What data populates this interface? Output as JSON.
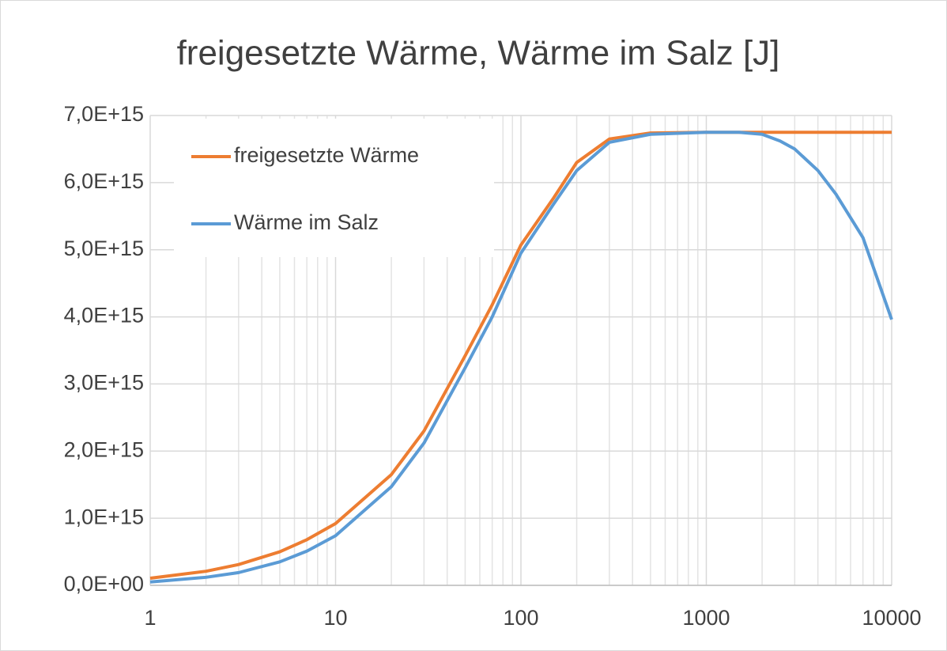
{
  "chart_data": {
    "type": "line",
    "title": "freigesetzte Wärme, Wärme im Salz [J]",
    "x": [
      1,
      2,
      3,
      5,
      7,
      10,
      20,
      30,
      50,
      70,
      100,
      150,
      200,
      300,
      500,
      1000,
      1500,
      2000,
      2500,
      3000,
      4000,
      5000,
      7000,
      10000
    ],
    "series": [
      {
        "name": "freigesetzte Wärme",
        "color": "#ed7d31",
        "values": [
          106000000000000.0,
          210000000000000.0,
          310000000000000.0,
          500000000000000.0,
          680000000000000.0,
          920000000000000.0,
          1650000000000000.0,
          2300000000000000.0,
          3420000000000000.0,
          4180000000000000.0,
          5070000000000000.0,
          5770000000000000.0,
          6300000000000000.0,
          6650000000000000.0,
          6740000000000000.0,
          6750000000000000.0,
          6750000000000000.0,
          6750000000000000.0,
          6750000000000000.0,
          6750000000000000.0,
          6750000000000000.0,
          6750000000000000.0,
          6750000000000000.0,
          6750000000000000.0
        ]
      },
      {
        "name": "Wärme im Salz",
        "color": "#5b9bd5",
        "values": [
          50000000000000.0,
          120000000000000.0,
          190000000000000.0,
          350000000000000.0,
          510000000000000.0,
          740000000000000.0,
          1470000000000000.0,
          2120000000000000.0,
          3240000000000000.0,
          4000000000000000.0,
          4950000000000000.0,
          5680000000000000.0,
          6180000000000000.0,
          6600000000000000.0,
          6720000000000000.0,
          6750000000000000.0,
          6750000000000000.0,
          6720000000000000.0,
          6620000000000000.0,
          6500000000000000.0,
          6180000000000000.0,
          5830000000000000.0,
          5180000000000000.0,
          3960000000000000.0
        ]
      }
    ],
    "xlim": [
      1,
      10000
    ],
    "xticks": [
      1,
      10,
      100,
      1000,
      10000
    ],
    "xscale": "log",
    "ylim": [
      0,
      7000000000000000.0
    ],
    "yticks": [
      {
        "value": 0,
        "label": "0,0E+00"
      },
      {
        "value": 1000000000000000.0,
        "label": "1,0E+15"
      },
      {
        "value": 2000000000000000.0,
        "label": "2,0E+15"
      },
      {
        "value": 3000000000000000.0,
        "label": "3,0E+15"
      },
      {
        "value": 4000000000000000.0,
        "label": "4,0E+15"
      },
      {
        "value": 5000000000000000.0,
        "label": "5,0E+15"
      },
      {
        "value": 6000000000000000.0,
        "label": "6,0E+15"
      },
      {
        "value": 7000000000000000.0,
        "label": "7,0E+15"
      }
    ],
    "grid": true,
    "minor_grid": true,
    "legend": "upper left"
  }
}
